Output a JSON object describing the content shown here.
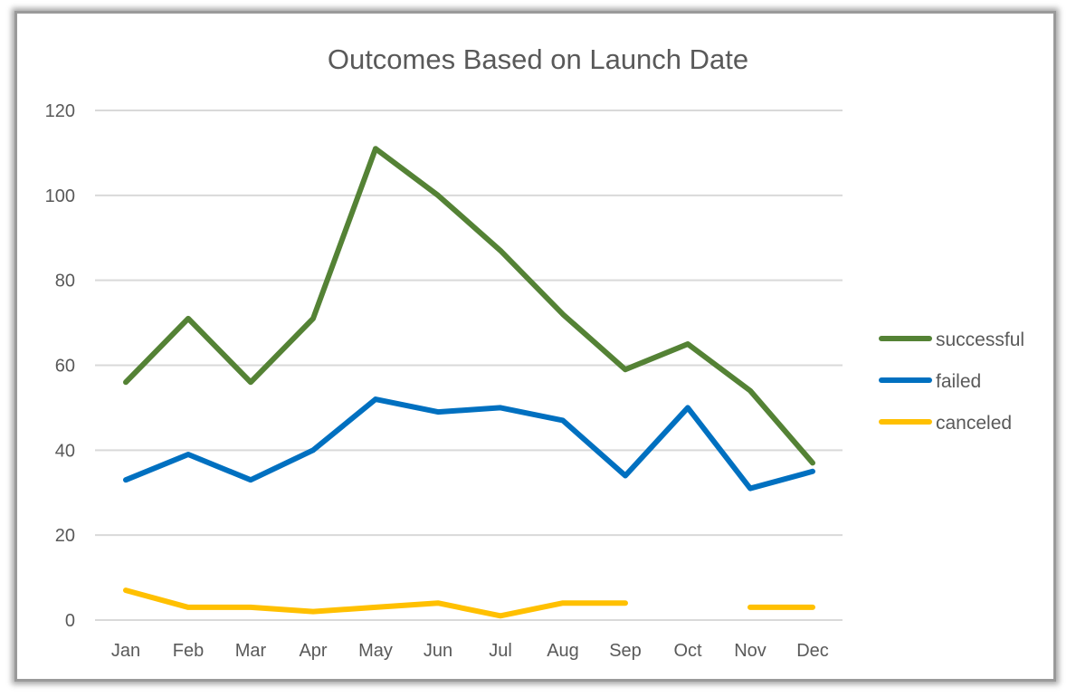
{
  "chart_data": {
    "type": "line",
    "title": "Outcomes Based on Launch Date",
    "xlabel": "",
    "ylabel": "",
    "categories": [
      "Jan",
      "Feb",
      "Mar",
      "Apr",
      "May",
      "Jun",
      "Jul",
      "Aug",
      "Sep",
      "Oct",
      "Nov",
      "Dec"
    ],
    "ylim": [
      0,
      120
    ],
    "yticks": [
      0,
      20,
      40,
      60,
      80,
      100,
      120
    ],
    "grid": true,
    "legend_position": "right",
    "series": [
      {
        "name": "successful",
        "color": "#548235",
        "values": [
          56,
          71,
          56,
          71,
          111,
          100,
          87,
          72,
          59,
          65,
          54,
          37
        ]
      },
      {
        "name": "failed",
        "color": "#0070C0",
        "values": [
          33,
          39,
          33,
          40,
          52,
          49,
          50,
          47,
          34,
          50,
          31,
          35
        ]
      },
      {
        "name": "canceled",
        "color": "#FFC000",
        "values": [
          7,
          3,
          3,
          2,
          3,
          4,
          1,
          4,
          4,
          null,
          3,
          3
        ]
      }
    ]
  }
}
